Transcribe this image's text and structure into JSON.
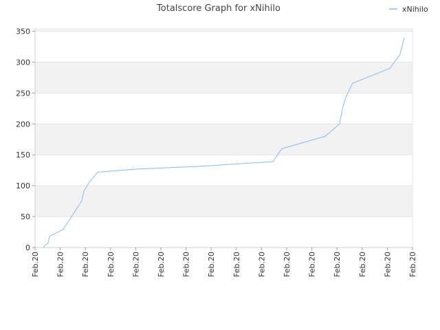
{
  "chart_data": {
    "type": "line",
    "title": "Totalscore Graph for xNihilo",
    "xlim": [
      0,
      15
    ],
    "xticks": [
      {
        "value": 0,
        "label": "Feb.20"
      },
      {
        "value": 1,
        "label": "Feb.20"
      },
      {
        "value": 2,
        "label": "Feb.20"
      },
      {
        "value": 3,
        "label": "Feb.20"
      },
      {
        "value": 4,
        "label": "Feb.20"
      },
      {
        "value": 5,
        "label": "Feb.20"
      },
      {
        "value": 6,
        "label": "Feb.20"
      },
      {
        "value": 7,
        "label": "Feb.20"
      },
      {
        "value": 8,
        "label": "Feb.20"
      },
      {
        "value": 9,
        "label": "Feb.20"
      },
      {
        "value": 10,
        "label": "Feb.20"
      },
      {
        "value": 11,
        "label": "Feb.20"
      },
      {
        "value": 12,
        "label": "Feb.20"
      },
      {
        "value": 13,
        "label": "Feb.20"
      },
      {
        "value": 14,
        "label": "Feb.20"
      },
      {
        "value": 15,
        "label": "Feb.20"
      }
    ],
    "ylim": [
      0,
      355
    ],
    "yticks": [
      0,
      50,
      100,
      150,
      200,
      250,
      300,
      350
    ],
    "grid": true,
    "legend": "top-right",
    "x": [
      0.33,
      0.41,
      0.52,
      0.57,
      1.11,
      1.45,
      1.69,
      1.86,
      1.94,
      2.16,
      2.49,
      4.07,
      6.8,
      9.45,
      9.81,
      11.53,
      12.1,
      12.21,
      12.35,
      12.62,
      14.1,
      14.51,
      14.67
    ],
    "series": [
      {
        "name": "xNihilo",
        "color": "#88bbee",
        "values": [
          0,
          4.5,
          7,
          18,
          29,
          50,
          65,
          76,
          91,
          106,
          122,
          127,
          132,
          139,
          160,
          180,
          200,
          224,
          243,
          266,
          290,
          313,
          340
        ]
      }
    ]
  }
}
